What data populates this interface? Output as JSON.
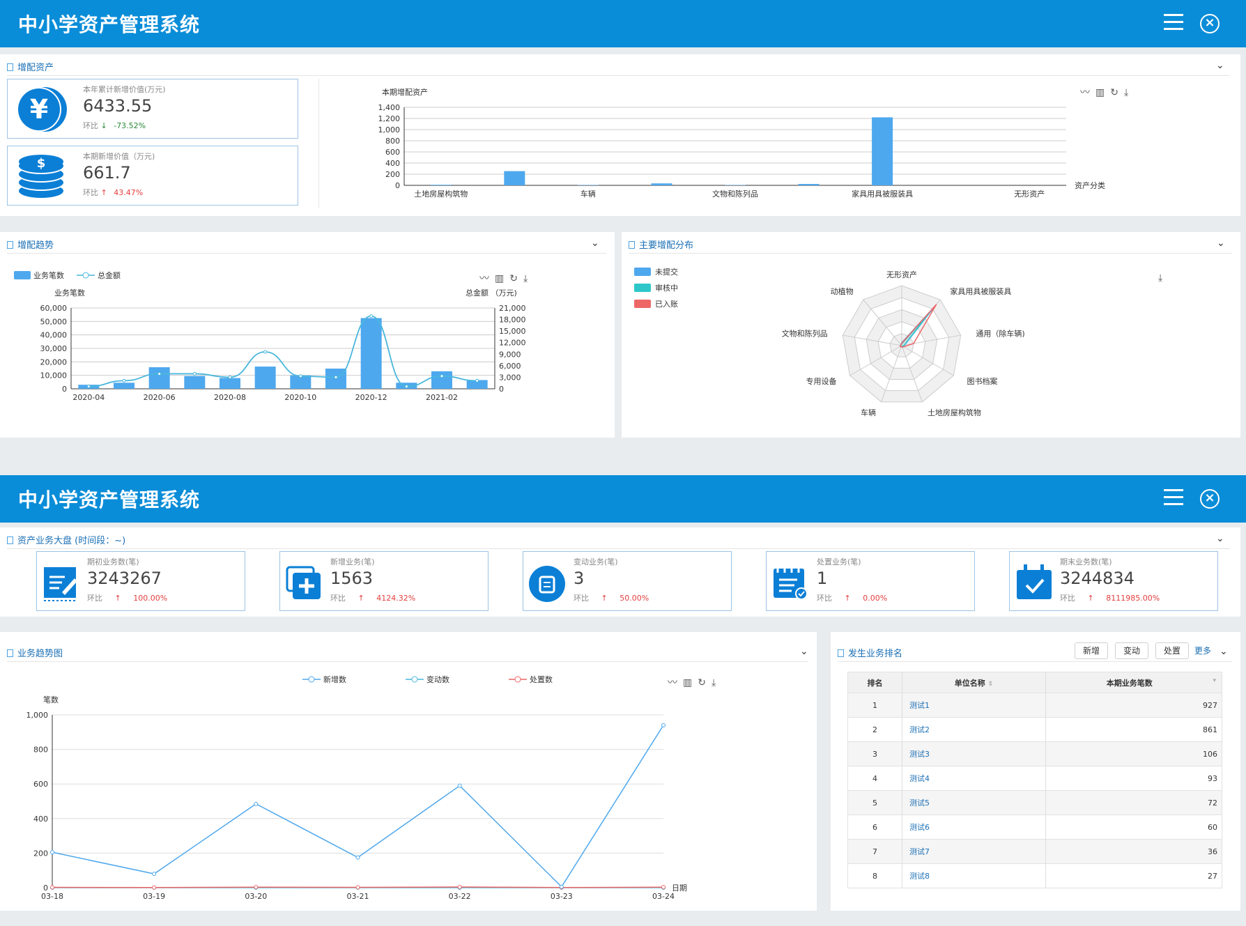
{
  "screens": [
    {
      "app_title": "中小学资产管理系统"
    },
    {
      "app_title": "中小学资产管理系统"
    }
  ],
  "assets_panel": {
    "title": "增配资产",
    "cards": [
      {
        "label": "本年累计新增价值(万元)",
        "value": "6433.55",
        "cmp_label": "环比",
        "arrow": "↓",
        "change": "-73.52%",
        "icon": "yen-coin-icon"
      },
      {
        "label": "本期新增价值（万元)",
        "value": "661.7",
        "cmp_label": "环比",
        "arrow": "↑",
        "change": "43.47%",
        "icon": "coin-stack-icon"
      }
    ]
  },
  "trend_panel": {
    "title": "增配趋势"
  },
  "dist_panel": {
    "title": "主要增配分布"
  },
  "dash_panel": {
    "title": "资产业务大盘 (时间段：~)",
    "cards": [
      {
        "label": "期初业务数(笔)",
        "value": "3243267",
        "cmp_label": "环比",
        "arrow": "↑",
        "change": "100.00%",
        "icon": "edit-form-icon"
      },
      {
        "label": "新增业务(笔)",
        "value": "1563",
        "cmp_label": "环比",
        "arrow": "↑",
        "change": "4124.32%",
        "icon": "add-document-icon"
      },
      {
        "label": "变动业务(笔)",
        "value": "3",
        "cmp_label": "环比",
        "arrow": "↑",
        "change": "50.00%",
        "icon": "document-circle-icon"
      },
      {
        "label": "处置业务(笔)",
        "value": "1",
        "cmp_label": "环比",
        "arrow": "↑",
        "change": "0.00%",
        "icon": "calendar-check-icon"
      },
      {
        "label": "期末业务数(笔)",
        "value": "3244834",
        "cmp_label": "环比",
        "arrow": "↑",
        "change": "8111985.00%",
        "icon": "calendar-done-icon"
      }
    ]
  },
  "biz_trend_panel": {
    "title": "业务趋势图"
  },
  "ranking_panel": {
    "title": "发生业务排名",
    "buttons": [
      "新增",
      "变动",
      "处置"
    ],
    "more": "更多",
    "columns": [
      "排名",
      "单位名称",
      "本期业务笔数"
    ],
    "rows": [
      [
        "1",
        "测试1",
        "927"
      ],
      [
        "2",
        "测试2",
        "861"
      ],
      [
        "3",
        "测试3",
        "106"
      ],
      [
        "4",
        "测试4",
        "93"
      ],
      [
        "5",
        "测试5",
        "72"
      ],
      [
        "6",
        "测试6",
        "60"
      ],
      [
        "7",
        "测试7",
        "36"
      ],
      [
        "8",
        "测试8",
        "27"
      ]
    ]
  },
  "chart_data": [
    {
      "type": "bar",
      "title": "本期增配资产",
      "xlabel": "资产分类",
      "ylim": [
        0,
        1400
      ],
      "yticks": [
        "1,400",
        "1,200",
        "1,000",
        "800",
        "600",
        "400",
        "200",
        "0"
      ],
      "categories": [
        "土地房屋构筑物",
        "",
        "车辆",
        "",
        "文物和陈列品",
        "",
        "家具用具被服装具",
        "",
        "无形资产"
      ],
      "values": [
        10,
        255,
        5,
        35,
        5,
        25,
        1220,
        0,
        0
      ]
    },
    {
      "type": "bar",
      "legend": [
        "业务笔数",
        "总金额"
      ],
      "ylabel": "业务笔数",
      "y2label": "总金额 （万元)",
      "ylim": [
        0,
        60000
      ],
      "y2lim": [
        0,
        21000
      ],
      "yticks": [
        "60,000",
        "50,000",
        "40,000",
        "30,000",
        "20,000",
        "10,000",
        "0"
      ],
      "y2ticks": [
        "21,000",
        "18,000",
        "15,000",
        "12,000",
        "9,000",
        "6,000",
        "3,000",
        "0"
      ],
      "xtick_labels": [
        "2020-04",
        "2020-06",
        "2020-08",
        "2020-10",
        "2020-12",
        "2021-02"
      ],
      "bar_values": [
        3000,
        4500,
        16000,
        9500,
        8000,
        16500,
        10000,
        15000,
        52500,
        4500,
        13000,
        6500
      ],
      "line_values": [
        600,
        2100,
        3900,
        3900,
        3000,
        9600,
        3300,
        3000,
        18900,
        600,
        3300,
        2100
      ]
    },
    {
      "type": "radar",
      "legend": [
        "未提交",
        "审核中",
        "已入账"
      ],
      "indicators": [
        "无形资产",
        "家具用具被服装具",
        "通用（除车辆)",
        "图书档案",
        "土地房屋构筑物",
        "车辆",
        "专用设备",
        "文物和陈列品",
        "动植物"
      ],
      "series": [
        {
          "name": "未提交",
          "values": [
            0.05,
            0.85,
            0.05,
            0.03,
            0.03,
            0.02,
            0.03,
            0.02,
            0.02
          ]
        },
        {
          "name": "审核中",
          "values": [
            0.03,
            0.75,
            0.04,
            0.02,
            0.02,
            0.02,
            0.02,
            0.02,
            0.02
          ]
        },
        {
          "name": "已入账",
          "values": [
            0.04,
            0.9,
            0.2,
            0.04,
            0.03,
            0.02,
            0.03,
            0.02,
            0.02
          ]
        }
      ]
    },
    {
      "type": "line",
      "legend": [
        "新增数",
        "变动数",
        "处置数"
      ],
      "ylabel": "笔数",
      "xlabel": "日期",
      "ylim": [
        0,
        1000
      ],
      "yticks": [
        "1,000",
        "800",
        "600",
        "400",
        "200",
        "0"
      ],
      "x": [
        "03-18",
        "03-19",
        "03-20",
        "03-21",
        "03-22",
        "03-23",
        "03-24"
      ],
      "series": [
        {
          "name": "新增数",
          "values": [
            205,
            80,
            485,
            175,
            590,
            5,
            940
          ]
        },
        {
          "name": "变动数",
          "values": [
            0,
            0,
            0,
            0,
            0,
            0,
            0
          ]
        },
        {
          "name": "处置数",
          "values": [
            2,
            1,
            3,
            2,
            4,
            1,
            3
          ]
        }
      ]
    }
  ]
}
